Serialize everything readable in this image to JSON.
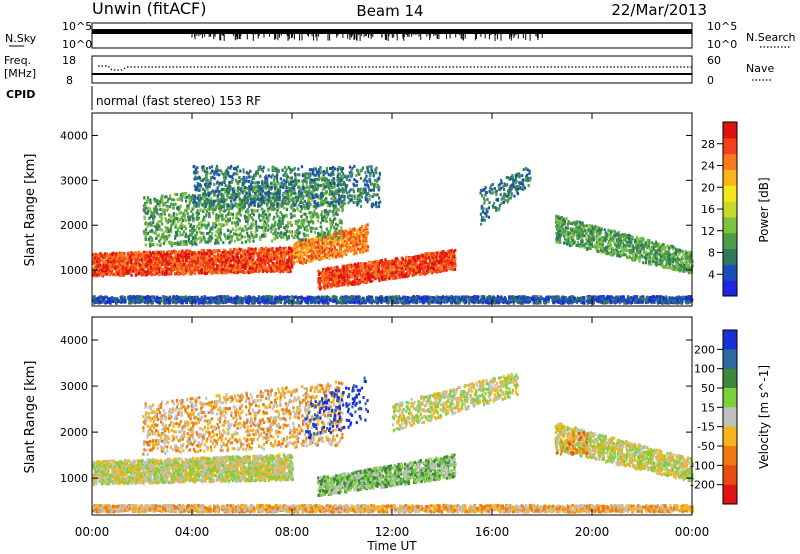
{
  "header": {
    "station": "Unwin (fitACF)",
    "beam": "Beam 14",
    "date": "22/Mar/2013"
  },
  "aux_panels": {
    "nsky_label": "N.Sky",
    "nsky_ticks": [
      "10^5",
      "10^0"
    ],
    "nsearch_label": "N.Search",
    "nsearch_ticks": [
      "10^5",
      "10^0"
    ],
    "freq_label_line1": "Freq.",
    "freq_label_line2": "[MHz]",
    "freq_ticks": [
      "18",
      "8"
    ],
    "nave_label": "Nave",
    "nave_ticks": [
      "60",
      "0"
    ],
    "cpid_label": "CPID",
    "cpid_text": "normal (fast stereo) 153 RF"
  },
  "chart_data": [
    {
      "type": "heatmap",
      "name": "Power",
      "ylabel": "Slant Range [km]",
      "yticks": [
        "1000",
        "2000",
        "3000",
        "4000"
      ],
      "ylim": [
        200,
        4500
      ],
      "xlim": [
        0,
        24
      ],
      "colorbar_label": "Power [dB]",
      "colorbar_ticks": [
        "4",
        "8",
        "12",
        "16",
        "20",
        "24",
        "28"
      ],
      "colorbar_range": [
        0,
        32
      ],
      "colorbar_colors": [
        "#1f25e0",
        "#1b4db8",
        "#2e7a5a",
        "#4a9d4a",
        "#7fc23d",
        "#c9d92b",
        "#f7e61c",
        "#fbb41a",
        "#f97a1a",
        "#f2401a",
        "#e01010"
      ]
    },
    {
      "type": "heatmap",
      "name": "Velocity",
      "ylabel": "Slant Range [km]",
      "yticks": [
        "1000",
        "2000",
        "3000",
        "4000"
      ],
      "ylim": [
        200,
        4500
      ],
      "xlim": [
        0,
        24
      ],
      "xticks": [
        "00:00",
        "04:00",
        "08:00",
        "12:00",
        "16:00",
        "20:00",
        "00:00"
      ],
      "xlabel": "Time UT",
      "colorbar_label": "Velocity [m s^-1]",
      "colorbar_ticks": [
        "200",
        "100",
        "50",
        "15",
        "-15",
        "-50",
        "-100",
        "-200"
      ],
      "colorbar_colors": [
        "#1a2fd6",
        "#2e6aa0",
        "#3a8a3a",
        "#7cd03a",
        "#c0c0c0",
        "#f4b41a",
        "#f07a10",
        "#e84a10",
        "#e01414"
      ]
    }
  ]
}
